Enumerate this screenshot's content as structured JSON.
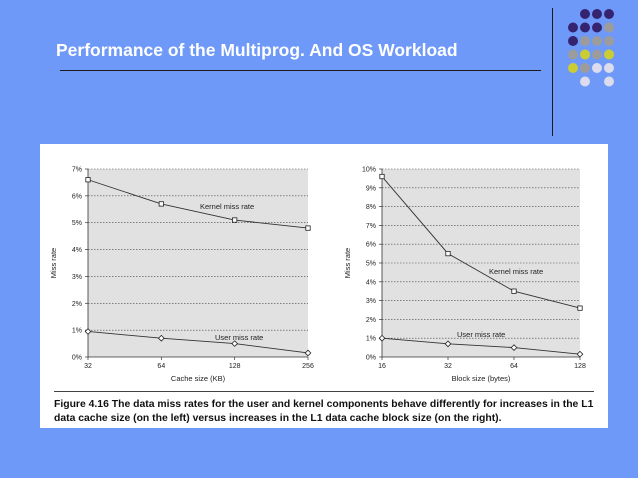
{
  "slide": {
    "title": "Performance of the Multiprog. And OS Workload"
  },
  "colors": {
    "background": "#6f99f9",
    "dot_purple": "#35236f",
    "dot_gray": "#9c9c9c",
    "dot_yellow": "#cccc33",
    "dot_light": "#dcdcec",
    "plot_bg": "#e1e1e1"
  },
  "figure": {
    "caption_label": "Figure 4.16",
    "caption_text": "The data miss rates for the user and kernel components behave differently for increases in the L1 data cache size (on the left) versus increases in the L1 data cache block size (on the right)."
  },
  "chart_data": [
    {
      "type": "line",
      "xlabel": "Cache size (KB)",
      "ylabel": "Miss rate",
      "x": [
        32,
        64,
        128,
        256
      ],
      "x_scale": "log2",
      "ylim": [
        0,
        7
      ],
      "yticks": [
        "0%",
        "1%",
        "2%",
        "3%",
        "4%",
        "5%",
        "6%",
        "7%"
      ],
      "grid": true,
      "series": [
        {
          "name": "Kernel miss rate",
          "marker": "square",
          "values": [
            6.6,
            5.7,
            5.1,
            4.8
          ]
        },
        {
          "name": "User miss rate",
          "marker": "diamond",
          "values": [
            0.95,
            0.7,
            0.5,
            0.15
          ]
        }
      ]
    },
    {
      "type": "line",
      "xlabel": "Block size (bytes)",
      "ylabel": "Miss rate",
      "x": [
        16,
        32,
        64,
        128
      ],
      "x_scale": "log2",
      "ylim": [
        0,
        10
      ],
      "yticks": [
        "0%",
        "1%",
        "2%",
        "3%",
        "4%",
        "5%",
        "6%",
        "7%",
        "8%",
        "9%",
        "10%"
      ],
      "grid": true,
      "series": [
        {
          "name": "Kernel miss rate",
          "marker": "square",
          "values": [
            9.6,
            5.5,
            3.5,
            2.6
          ]
        },
        {
          "name": "User miss rate",
          "marker": "diamond",
          "values": [
            1.0,
            0.7,
            0.5,
            0.15
          ]
        }
      ]
    }
  ]
}
